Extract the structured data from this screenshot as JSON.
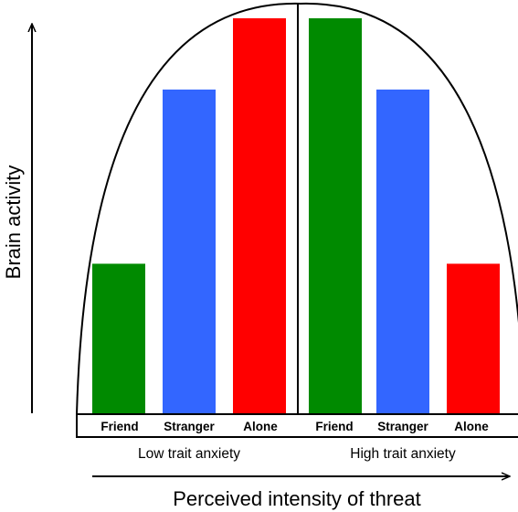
{
  "chart_data": {
    "type": "bar",
    "ylabel": "Brain activity",
    "xlabel": "Perceived intensity of threat",
    "ylim": [
      0,
      100
    ],
    "grid": false,
    "colors": {
      "Friend": "#008a00",
      "Stranger": "#3366ff",
      "Alone": "#ff0000"
    },
    "groups": [
      {
        "name": "Low trait anxiety",
        "categories": [
          "Friend",
          "Stranger",
          "Alone"
        ],
        "values": [
          38,
          82,
          100
        ]
      },
      {
        "name": "High trait anxiety",
        "categories": [
          "Friend",
          "Stranger",
          "Alone"
        ],
        "values": [
          100,
          82,
          38
        ]
      }
    ]
  }
}
